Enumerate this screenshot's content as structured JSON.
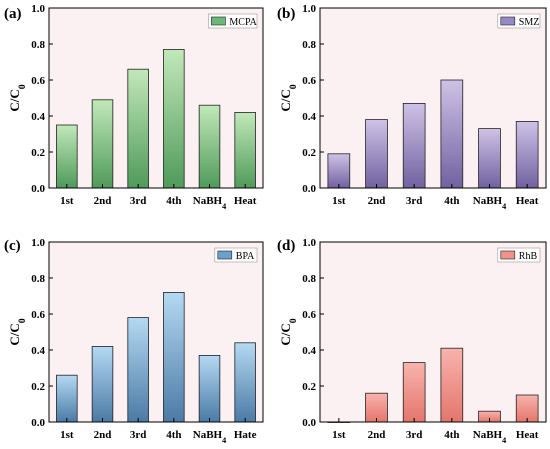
{
  "panels": [
    {
      "letter": "(a)",
      "legend": "MCPA"
    },
    {
      "letter": "(b)",
      "legend": "SMZ"
    },
    {
      "letter": "(c)",
      "legend": "BPA"
    },
    {
      "letter": "(d)",
      "legend": "RhB"
    }
  ],
  "chart_data": [
    {
      "type": "bar",
      "panel": "(a)",
      "categories": [
        "1st",
        "2nd",
        "3rd",
        "4th",
        "NaBH4",
        "Heat"
      ],
      "series": [
        {
          "name": "MCPA",
          "values": [
            0.35,
            0.49,
            0.66,
            0.77,
            0.46,
            0.42
          ]
        }
      ],
      "ylabel": "C/C0",
      "ylim": [
        0,
        1.0
      ],
      "yticks": [
        "0.0",
        "0.2",
        "0.4",
        "0.6",
        "0.8",
        "1.0"
      ],
      "colors": {
        "plot_bg": "#fbf1f2",
        "bar_top": "#c2e8b9",
        "bar_bottom": "#4f9a5a",
        "legend": "#6cb77a"
      },
      "grid": false,
      "legend_position": "top-right"
    },
    {
      "type": "bar",
      "panel": "(b)",
      "categories": [
        "1st",
        "2nd",
        "3rd",
        "4th",
        "NaBH4",
        "Heat"
      ],
      "series": [
        {
          "name": "SMZ",
          "values": [
            0.19,
            0.38,
            0.47,
            0.6,
            0.33,
            0.37
          ]
        }
      ],
      "ylabel": "C/C0",
      "ylim": [
        0,
        1.0
      ],
      "yticks": [
        "0.0",
        "0.2",
        "0.4",
        "0.6",
        "0.8",
        "1.0"
      ],
      "colors": {
        "plot_bg": "#fbf1f2",
        "bar_top": "#cfc2e6",
        "bar_bottom": "#7161a0",
        "legend": "#9a88c6"
      },
      "grid": false,
      "legend_position": "top-right"
    },
    {
      "type": "bar",
      "panel": "(c)",
      "categories": [
        "1st",
        "2nd",
        "3rd",
        "4th",
        "NaBH4",
        "Hate"
      ],
      "series": [
        {
          "name": "BPA",
          "values": [
            0.26,
            0.42,
            0.58,
            0.72,
            0.37,
            0.44
          ]
        }
      ],
      "ylabel": "C/C0",
      "ylim": [
        0,
        1.0
      ],
      "yticks": [
        "0.0",
        "0.2",
        "0.4",
        "0.6",
        "0.8",
        "1.0"
      ],
      "colors": {
        "plot_bg": "#fbf1f2",
        "bar_top": "#b5d9f2",
        "bar_bottom": "#4a7aa6",
        "legend": "#6b9fcf"
      },
      "grid": false,
      "legend_position": "top-right"
    },
    {
      "type": "bar",
      "panel": "(d)",
      "categories": [
        "1st",
        "2nd",
        "3rd",
        "4th",
        "NaBH4",
        "Heat"
      ],
      "series": [
        {
          "name": "RhB",
          "values": [
            0.0,
            0.16,
            0.33,
            0.41,
            0.06,
            0.15
          ]
        }
      ],
      "ylabel": "C/C0",
      "ylim": [
        0,
        1.0
      ],
      "yticks": [
        "0.0",
        "0.2",
        "0.4",
        "0.6",
        "0.8",
        "1.0"
      ],
      "colors": {
        "plot_bg": "#fbf1f2",
        "bar_top": "#f8b3ad",
        "bar_bottom": "#e4766c",
        "legend": "#f0938b"
      },
      "grid": false,
      "legend_position": "top-right"
    }
  ]
}
